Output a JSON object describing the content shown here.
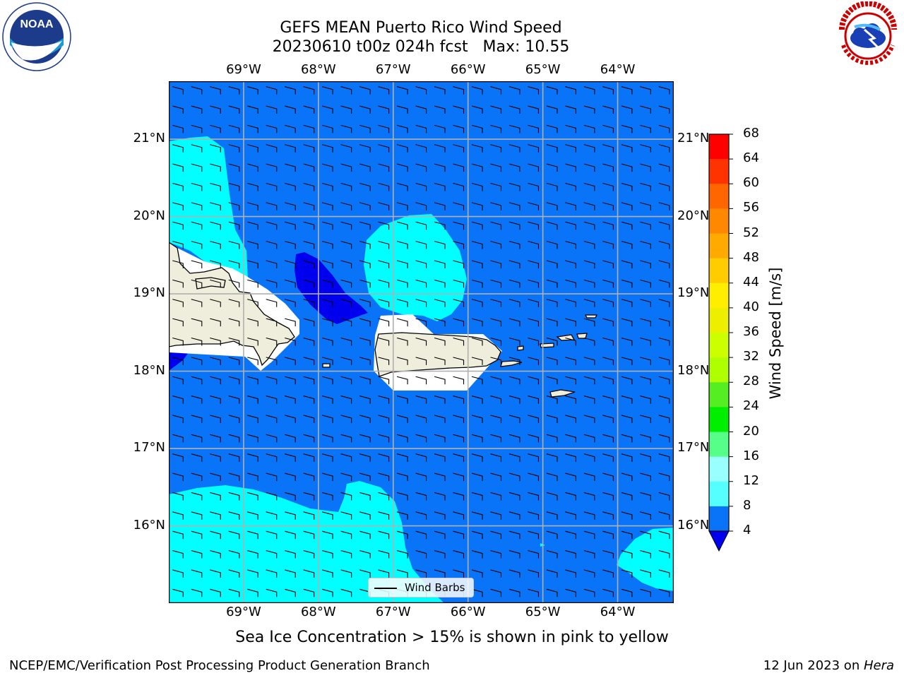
{
  "title": {
    "line1": "GEFS MEAN Puerto Rico Wind Speed",
    "line2": "20230610 t00z 024h fcst   Max: 10.55"
  },
  "logos": {
    "left": {
      "name": "noaa-logo",
      "text": "NOAA",
      "ring_text": "NATIONAL OCEANIC AND ATMOSPHERIC ADMINISTRATION",
      "ring_text_bottom": "U.S. DEPARTMENT OF COMMERCE"
    },
    "right": {
      "name": "nws-logo",
      "ring_text": "NATIONAL WEATHER SERVICE"
    }
  },
  "map": {
    "lon_labels": [
      "69°W",
      "68°W",
      "67°W",
      "66°W",
      "65°W",
      "64°W"
    ],
    "lat_labels": [
      "21°N",
      "20°N",
      "19°N",
      "18°N",
      "17°N",
      "16°N"
    ],
    "lon_range": [
      -70.0,
      -63.25
    ],
    "lat_range": [
      15.0,
      21.75
    ],
    "barb_spacing_deg": 0.25,
    "colors": {
      "sea_base": "#0a74f9",
      "band_8_12": "#00ffff",
      "band_0_4": "#0000ee",
      "land": "#efeedc",
      "mask": "#ffffff",
      "grid": "#b0b0b0"
    }
  },
  "legend": {
    "label": "Wind Barbs"
  },
  "colorbar": {
    "label": "Wind Speed [m/s]",
    "ticks": [
      "68",
      "64",
      "60",
      "56",
      "52",
      "48",
      "44",
      "40",
      "36",
      "32",
      "28",
      "24",
      "20",
      "16",
      "12",
      "8",
      "4"
    ],
    "colors": [
      "#ff0000",
      "#ff3300",
      "#ff6600",
      "#ff8800",
      "#ffaa00",
      "#ffcc00",
      "#ffee00",
      "#eeee00",
      "#ccff00",
      "#b0ff00",
      "#55ee22",
      "#00ee00",
      "#55ff88",
      "#99ffff",
      "#55ffff",
      "#00ffff",
      "#0a74f9"
    ],
    "under_color": "#0000ee"
  },
  "chart_data": {
    "type": "heatmap",
    "title": "GEFS MEAN Puerto Rico Wind Speed",
    "subtitle": "20230610 t00z 024h fcst   Max: 10.55",
    "variable": "Wind Speed [m/s]",
    "max_value": 10.55,
    "color_levels": [
      4,
      8,
      12,
      16,
      20,
      24,
      28,
      32,
      36,
      40,
      44,
      48,
      52,
      56,
      60,
      64,
      68
    ],
    "xlim": [
      -70.0,
      -63.25
    ],
    "ylim": [
      15.0,
      21.75
    ],
    "regions": [
      {
        "range": "8-12",
        "area": "northwest near 21°N 69.5°W"
      },
      {
        "range": "8-12",
        "area": "north of Puerto Rico near 19.5°N 66.5°W"
      },
      {
        "range": "8-12",
        "area": "southwest near 15.5°N 69°W-67°W"
      },
      {
        "range": "8-12",
        "area": "southeast near 15.5°N 63.5°W"
      },
      {
        "range": "<4",
        "area": "Mona Passage near 18.8°N 67.8°W"
      }
    ]
  },
  "note": "Sea Ice Concentration > 15% is shown in pink to yellow",
  "footer": {
    "left": "NCEP/EMC/Verification Post Processing Product Generation Branch",
    "right_date": "12 Jun 2023 on ",
    "right_machine": "Hera"
  }
}
